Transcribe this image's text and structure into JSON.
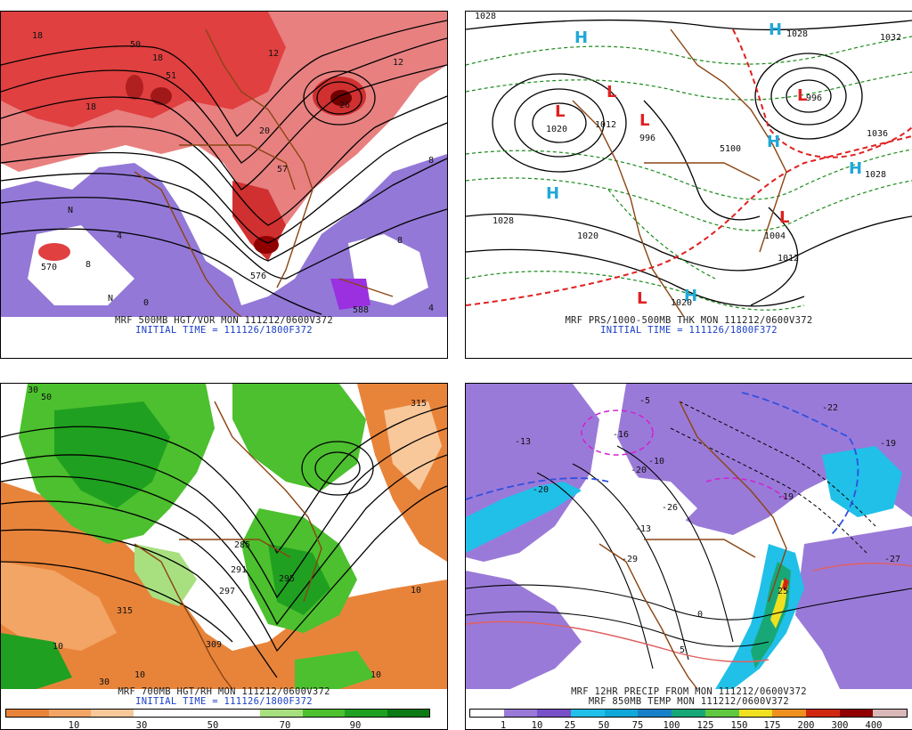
{
  "panels": [
    {
      "id": "tl",
      "caption_line1": "MRF 500MB HGT/VOR MON 111212/0600V372",
      "caption_line2": "INITIAL TIME = 111126/1800F372",
      "labels": [
        "18",
        "50",
        "51",
        "18",
        "20",
        "57",
        "26",
        "12",
        "18",
        "8",
        "570",
        "8",
        "N",
        "4",
        "0",
        "8",
        "576",
        "588",
        "4",
        "N",
        "12"
      ]
    },
    {
      "id": "tr",
      "caption_line1": "MRF PRS/1000-500MB THK MON 111212/0600V372",
      "caption_line2": "INITIAL TIME = 111126/1800F372",
      "labels": [
        "1028",
        "1020",
        "1012",
        "996",
        "1028",
        "1020",
        "1004",
        "1012",
        "1028",
        "1020",
        "996",
        "1032",
        "5100",
        "1036",
        "1028"
      ],
      "highs": [
        "H",
        "H",
        "H",
        "H",
        "H",
        "H"
      ],
      "lows": [
        "L",
        "L",
        "L",
        "L",
        "L",
        "L"
      ]
    },
    {
      "id": "bl",
      "caption_line1": "MRF 700MB HGT/RH MON 111212/0600V372",
      "caption_line2": "INITIAL TIME = 111126/1800F372",
      "labels": [
        "30",
        "50",
        "315",
        "309",
        "297",
        "285",
        "295",
        "291",
        "10",
        "10",
        "30",
        "10",
        "315",
        "10"
      ],
      "scale_ticks": [
        "10",
        "30",
        "50",
        "70",
        "90"
      ],
      "scale_colors": [
        "#e8843a",
        "#f2a565",
        "#f8c79a",
        "#ffffff",
        "#ffffff",
        "#ffffff",
        "#a8e080",
        "#4cc02e",
        "#20a020",
        "#0a7a14"
      ]
    },
    {
      "id": "br",
      "caption_line1": "MRF 12HR PRECIP FROM MON 111212/0600V372",
      "caption_line2": "MRF 850MB TEMP MON 111212/0600V372",
      "labels": [
        "-13",
        "-20",
        "-16",
        "-5",
        "-10",
        "-13",
        "-26",
        "-20",
        "-29",
        "-22",
        "-19",
        "-27",
        "-19",
        "25",
        "0",
        "5"
      ],
      "scale_ticks": [
        "1",
        "10",
        "25",
        "50",
        "75",
        "100",
        "125",
        "150",
        "175",
        "200",
        "300",
        "400"
      ],
      "scale_colors": [
        "#ffffff",
        "#9a7ad8",
        "#7850c8",
        "#20c0e8",
        "#10a8d8",
        "#1880c8",
        "#18a878",
        "#60c840",
        "#f0e020",
        "#f09020",
        "#d02810",
        "#900000",
        "#d8b8b8"
      ]
    }
  ],
  "colors": {
    "vorticity_red": "#e04040",
    "vorticity_purple": "#8060d0",
    "coastline": "#8b4513",
    "thickness_red": "#e02020",
    "thickness_green": "#1a8a1a",
    "high_cyan": "#20a8d8",
    "low_red": "#e02020",
    "caption_blue": "#1a3ec8"
  }
}
